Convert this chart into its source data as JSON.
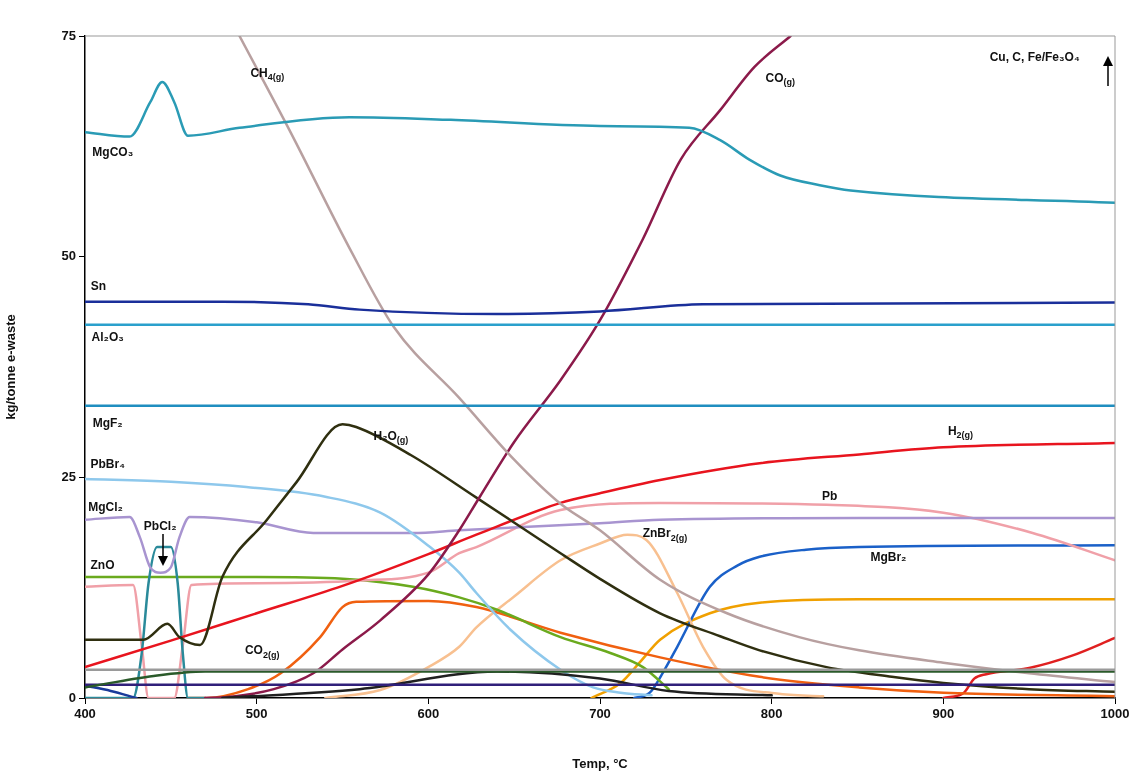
{
  "chart_data": {
    "type": "line",
    "xlabel": "Temp, °C",
    "ylabel": "kg/tonne e-waste",
    "xlim": [
      400,
      1000
    ],
    "xticks": [
      400,
      500,
      600,
      700,
      800,
      900,
      1000
    ],
    "ylim": [
      0,
      75
    ],
    "yticks": [
      0,
      25,
      50,
      75
    ],
    "grid": false,
    "marker": "none",
    "line_style": "solid",
    "annotations": [
      "Cu, C, Fe/Fe₃O₄"
    ],
    "series": [
      {
        "color": "#9a9a9a",
        "x": [
          400,
          1000
        ],
        "values": [
          3.2,
          3.2
        ]
      },
      {
        "color": "#2a5a2a",
        "x": [
          400,
          440,
          470,
          1000
        ],
        "values": [
          1.2,
          2.5,
          3.0,
          3.0
        ]
      },
      {
        "color": "#30207a",
        "x": [
          400,
          1000
        ],
        "values": [
          1.5,
          1.5
        ]
      },
      {
        "color": "#1a3a9a",
        "x": [
          400,
          415,
          430
        ],
        "values": [
          1.4,
          0.8,
          0
        ]
      },
      {
        "color": "#202020",
        "x": [
          480,
          560,
          640,
          700,
          740,
          800
        ],
        "values": [
          0,
          1.0,
          3.0,
          2.2,
          0.8,
          0.3
        ]
      },
      {
        "name": "MgCO₃",
        "color": "#2a9bb5",
        "x": [
          400,
          426,
          438,
          445,
          452,
          460,
          490,
          554,
          613,
          700,
          752,
          770,
          787,
          805,
          828,
          846,
          1000
        ],
        "values": [
          64.1,
          63.6,
          67.5,
          69.8,
          67.5,
          63.7,
          64.6,
          65.8,
          65.5,
          64.8,
          64.6,
          63.2,
          61.0,
          59.2,
          58.1,
          57.5,
          56.1
        ]
      },
      {
        "name": "Sn",
        "color": "#1a2f9a",
        "x": [
          400,
          480,
          530,
          560,
          640,
          700,
          760,
          1000
        ],
        "values": [
          44.9,
          44.9,
          44.6,
          44.0,
          43.5,
          43.8,
          44.6,
          44.8
        ]
      },
      {
        "name": "Al₂O₃",
        "color": "#2aa0cc",
        "x": [
          400,
          1000
        ],
        "values": [
          42.3,
          42.3
        ]
      },
      {
        "name": "MgF₂",
        "color": "#1f8ec0",
        "x": [
          400,
          1000
        ],
        "values": [
          33.1,
          33.1
        ]
      },
      {
        "name": "CH$_{4(g)}$",
        "color": "#b8a0a0",
        "x": [
          490,
          520,
          554,
          580,
          618,
          650,
          677,
          700,
          735,
          774,
          816,
          851,
          900,
          950,
          1000
        ],
        "values": [
          75,
          64,
          51,
          42,
          34,
          27,
          22,
          19,
          13.4,
          9.6,
          6.9,
          5.4,
          4.0,
          2.8,
          1.8
        ]
      },
      {
        "name": "CO$_{(g)}$",
        "color": "#8b1a4a",
        "x": [
          470,
          483,
          510,
          533,
          550,
          572,
          600,
          618,
          630,
          650,
          677,
          700,
          725,
          747,
          770,
          790,
          811
        ],
        "values": [
          0,
          0.1,
          1.0,
          2.8,
          5.5,
          8.8,
          14,
          19,
          22.8,
          29,
          36,
          42.8,
          52,
          61,
          66.6,
          71.5,
          75
        ]
      },
      {
        "name": "H₂O$_{(g)}$",
        "color": "#2f2f10",
        "x": [
          400,
          434,
          448,
          455,
          467,
          480,
          506,
          523,
          550,
          558,
          590,
          628,
          677,
          700,
          735,
          770,
          793,
          832,
          870,
          900,
          950,
          1000
        ],
        "values": [
          6.6,
          6.6,
          8.4,
          6.9,
          6.0,
          13.7,
          20.2,
          24.4,
          31.0,
          30.7,
          27.5,
          22.7,
          16.4,
          13.5,
          9.6,
          7.0,
          5.4,
          3.5,
          2.4,
          1.7,
          1.0,
          0.7
        ]
      },
      {
        "name": "H$_{2(g)}$",
        "color": "#e8141e",
        "x": [
          400,
          450,
          500,
          550,
          600,
          628,
          677,
          700,
          735,
          793,
          851,
          900,
          1000
        ],
        "values": [
          3.5,
          6.5,
          9.6,
          12.7,
          16.3,
          18.5,
          22.1,
          23.2,
          24.7,
          26.6,
          27.6,
          28.4,
          28.9
        ]
      },
      {
        "name": "PbBr₄",
        "color": "#8ec8ec",
        "x": [
          400,
          450,
          494,
          540,
          572,
          601,
          618,
          628,
          648,
          677,
          696,
          712,
          730
        ],
        "values": [
          24.8,
          24.5,
          23.9,
          22.8,
          21.0,
          17.1,
          14.2,
          11.9,
          7.7,
          3.2,
          1.2,
          0.6,
          0.3
        ]
      },
      {
        "name": "MgCl₂",
        "color": "#a894d0",
        "x": [
          400,
          426,
          432,
          438,
          444,
          450,
          455,
          461,
          500,
          533,
          591,
          618,
          700,
          735,
          851,
          1000
        ],
        "values": [
          20.2,
          20.5,
          18.2,
          14.8,
          14.2,
          14.8,
          18.2,
          20.5,
          19.9,
          18.7,
          18.7,
          19.0,
          19.8,
          20.2,
          20.4,
          20.4
        ]
      },
      {
        "name": "PbCl₂",
        "color": "#2a8a9a",
        "x": [
          400,
          428,
          433,
          437,
          442,
          450,
          454,
          457,
          460,
          470
        ],
        "values": [
          0,
          0,
          5,
          13,
          17.1,
          17.1,
          13,
          5,
          0,
          0
        ]
      },
      {
        "name": "Pb",
        "color": "#f0a0a8",
        "x": [
          400,
          428,
          433,
          437,
          452,
          457,
          462,
          500,
          560,
          600,
          618,
          628,
          677,
          735,
          832,
          900,
          952,
          1000
        ],
        "values": [
          12.6,
          12.8,
          6,
          0,
          0,
          6,
          12.8,
          13.0,
          13.3,
          14.2,
          16.4,
          17.1,
          21.3,
          22.1,
          21.9,
          21.0,
          18.7,
          15.6
        ]
      },
      {
        "name": "ZnO",
        "color": "#6aaa1e",
        "x": [
          400,
          500,
          550,
          591,
          618,
          640,
          677,
          706,
          725,
          740
        ],
        "values": [
          13.7,
          13.7,
          13.5,
          12.6,
          11.4,
          10.0,
          6.9,
          5.1,
          3.5,
          1.0
        ]
      },
      {
        "name": "CO$_{2(g)}$",
        "color": "#f06010",
        "x": [
          460,
          471,
          495,
          514,
          537,
          550,
          558,
          600,
          628,
          677,
          735,
          793,
          851,
          900,
          1000
        ],
        "values": [
          0,
          0,
          1.0,
          2.8,
          6.9,
          10.3,
          10.9,
          11.0,
          10.3,
          7.4,
          4.6,
          2.4,
          1.2,
          0.6,
          0.2
        ]
      },
      {
        "name": "ZnBr$_{2(g)}$",
        "color": "#f8c090",
        "x": [
          540,
          572,
          600,
          618,
          628,
          650,
          677,
          700,
          716,
          727,
          745,
          760,
          774,
          803,
          830
        ],
        "values": [
          0,
          0.9,
          3.5,
          5.8,
          8.0,
          11.5,
          15.6,
          17.5,
          18.5,
          17.9,
          11.9,
          5.8,
          2.0,
          0.5,
          0.2
        ]
      },
      {
        "name": "MgBr₂",
        "color": "#1a60c8",
        "x": [
          720,
          729,
          737,
          745,
          764,
          780,
          793,
          820,
          851,
          1000
        ],
        "values": [
          0,
          0.6,
          3.0,
          5.8,
          12.6,
          15.0,
          16.0,
          16.8,
          17.1,
          17.3
        ]
      },
      {
        "color": "#f0a000",
        "x": [
          695,
          712,
          723,
          735,
          764,
          793,
          851,
          1000
        ],
        "values": [
          0,
          1.7,
          4.0,
          6.6,
          9.6,
          10.8,
          11.2,
          11.2
        ]
      },
      {
        "color": "#e02020",
        "x": [
          900,
          912,
          918,
          925,
          950,
          975,
          1000
        ],
        "values": [
          0,
          0.6,
          2.2,
          2.7,
          3.4,
          4.8,
          6.8
        ]
      }
    ]
  }
}
